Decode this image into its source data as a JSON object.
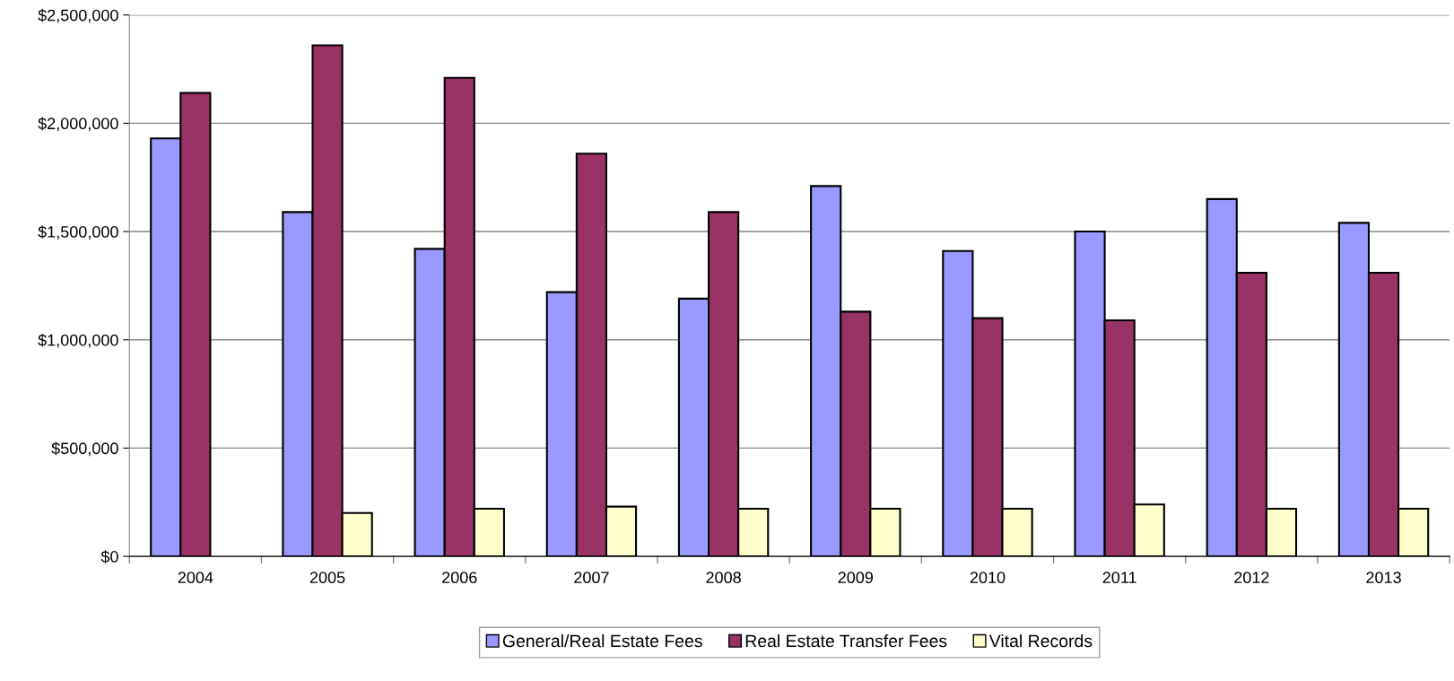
{
  "chart_data": {
    "type": "bar",
    "categories": [
      "2004",
      "2005",
      "2006",
      "2007",
      "2008",
      "2009",
      "2010",
      "2011",
      "2012",
      "2013"
    ],
    "series": [
      {
        "name": "General/Real Estate Fees",
        "color": "#9999ff",
        "values": [
          1930000,
          1590000,
          1420000,
          1220000,
          1190000,
          1710000,
          1410000,
          1500000,
          1650000,
          1540000
        ]
      },
      {
        "name": "Real Estate Transfer Fees",
        "color": "#993366",
        "values": [
          2140000,
          2360000,
          2210000,
          1860000,
          1590000,
          1130000,
          1100000,
          1090000,
          1310000,
          1310000
        ]
      },
      {
        "name": "Vital Records",
        "color": "#ffffcc",
        "values": [
          null,
          200000,
          220000,
          230000,
          220000,
          220000,
          220000,
          240000,
          220000,
          220000
        ]
      }
    ],
    "ylim": [
      0,
      2500000
    ],
    "yticks": [
      {
        "value": 0,
        "label": "$0"
      },
      {
        "value": 500000,
        "label": "$500,000"
      },
      {
        "value": 1000000,
        "label": "$1,000,000"
      },
      {
        "value": 1500000,
        "label": "$1,500,000"
      },
      {
        "value": 2000000,
        "label": "$2,000,000"
      },
      {
        "value": 2500000,
        "label": "$2,500,000"
      }
    ],
    "grid": "y",
    "legend": "bottom"
  }
}
